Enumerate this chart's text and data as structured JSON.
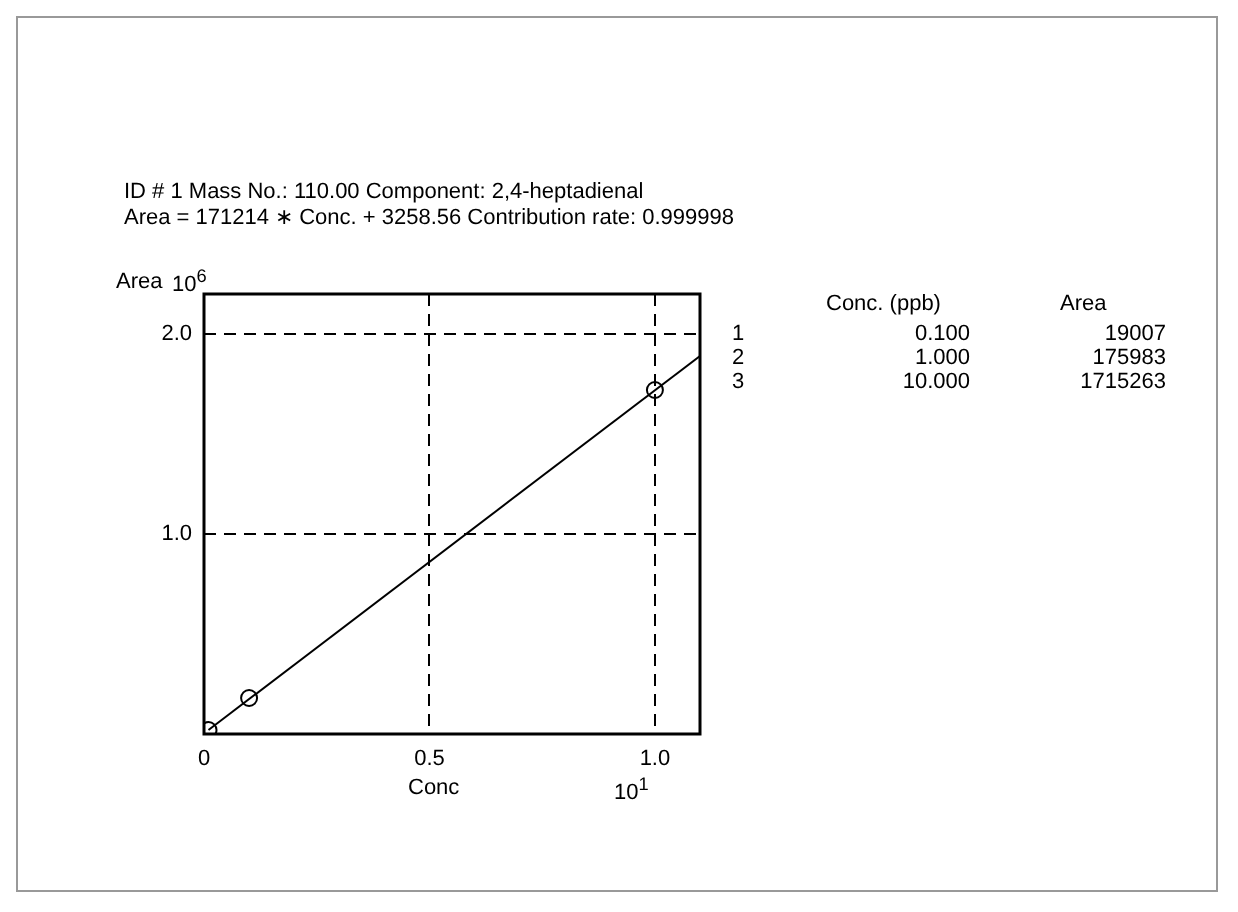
{
  "chart_data": {
    "type": "scatter",
    "title": "ID # 1  Mass No.: 110.00  Component: 2,4-heptadienal",
    "subtitle": "Area = 171214 ∗ Conc. + 3258.56  Contribution rate: 0.999998",
    "xlabel": "Conc",
    "ylabel": "Area",
    "annotations": [
      "10$^{6}$",
      "10$^{1}$",
      "Conc. (ppb)",
      "Area",
      "1",
      "2",
      "3",
      "0.100",
      "1.000",
      "10.000",
      "19007",
      "175983",
      "1715263"
    ],
    "series": [
      {
        "color": "#000000",
        "marker": "circle",
        "x": [
          0.01,
          0.1,
          1.0
        ],
        "values": [
          0.02,
          0.18,
          1.72
        ]
      },
      {
        "type": "line",
        "color": "#000000",
        "marker": "none",
        "x": [
          0.01,
          1.1
        ],
        "values": [
          0.02,
          1.89
        ]
      }
    ],
    "xlim": [
      0,
      1.1
    ],
    "xticks": [
      0,
      0.5,
      {
        "value": 1,
        "label": "1.0"
      }
    ],
    "ylim": [
      0,
      2.2
    ],
    "yticks": [
      {
        "value": 1,
        "label": "1.0"
      },
      {
        "value": 2,
        "label": "2.0"
      }
    ],
    "grid": true
  }
}
